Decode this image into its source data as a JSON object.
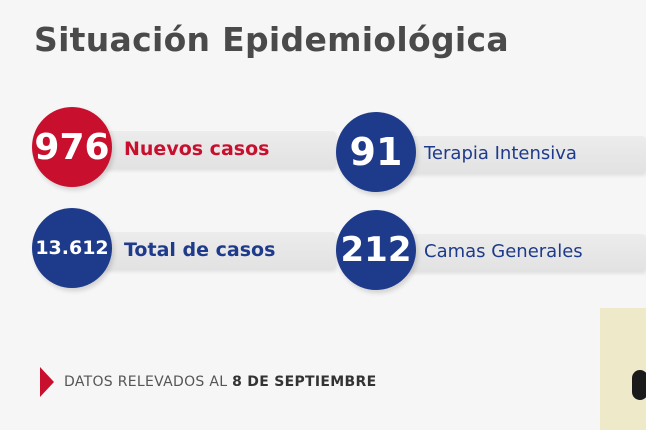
{
  "title": "Situación Epidemiológica",
  "stats": {
    "nuevos": {
      "value": "976",
      "label": "Nuevos casos",
      "color": "#c8102e"
    },
    "total": {
      "value": "13.612",
      "label": "Total de casos",
      "color": "#1e3a8a"
    },
    "terapia": {
      "value": "91",
      "label": "Terapia Intensiva",
      "color": "#1e3a8a"
    },
    "camas": {
      "value": "212",
      "label": "Camas Generales",
      "color": "#1e3a8a"
    }
  },
  "footer": {
    "prefix": "DATOS RELEVADOS AL",
    "date": "8 DE SEPTIEMBRE"
  }
}
